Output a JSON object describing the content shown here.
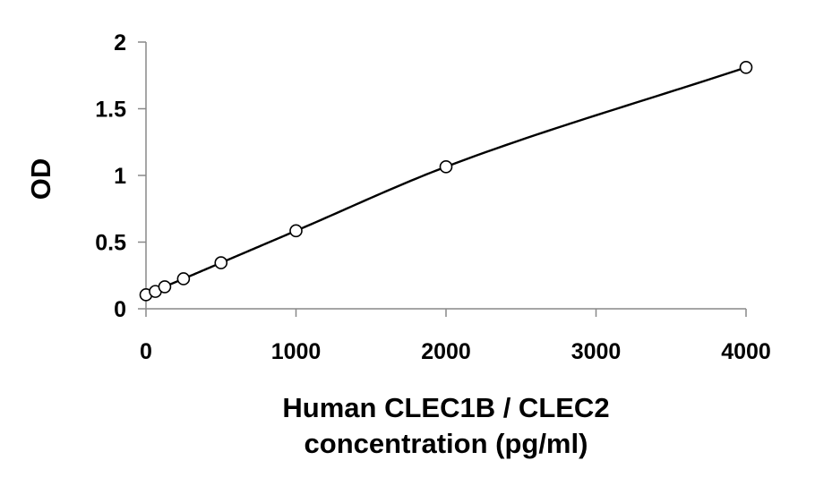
{
  "chart_data": {
    "type": "scatter",
    "title": "",
    "xlabel_lines": [
      "Human CLEC1B / CLEC2",
      "concentration (pg/ml)"
    ],
    "ylabel": "OD",
    "xlim": [
      0,
      4000
    ],
    "ylim": [
      0,
      2
    ],
    "x_ticks": [
      0,
      1000,
      2000,
      3000,
      4000
    ],
    "y_ticks": [
      0,
      0.5,
      1,
      1.5,
      2
    ],
    "x_tick_labels": [
      "0",
      "1000",
      "2000",
      "3000",
      "4000"
    ],
    "y_tick_labels": [
      "0",
      "0.5",
      "1",
      "1.5",
      "2"
    ],
    "grid": false,
    "legend": "none",
    "series": [
      {
        "marker": "open-circle",
        "fit_line": "smooth",
        "color": "#000000",
        "x": [
          0,
          62.5,
          125,
          250,
          500,
          1000,
          2000,
          4000
        ],
        "y": [
          0.105,
          0.13,
          0.165,
          0.225,
          0.345,
          0.585,
          1.065,
          1.81
        ]
      }
    ]
  }
}
